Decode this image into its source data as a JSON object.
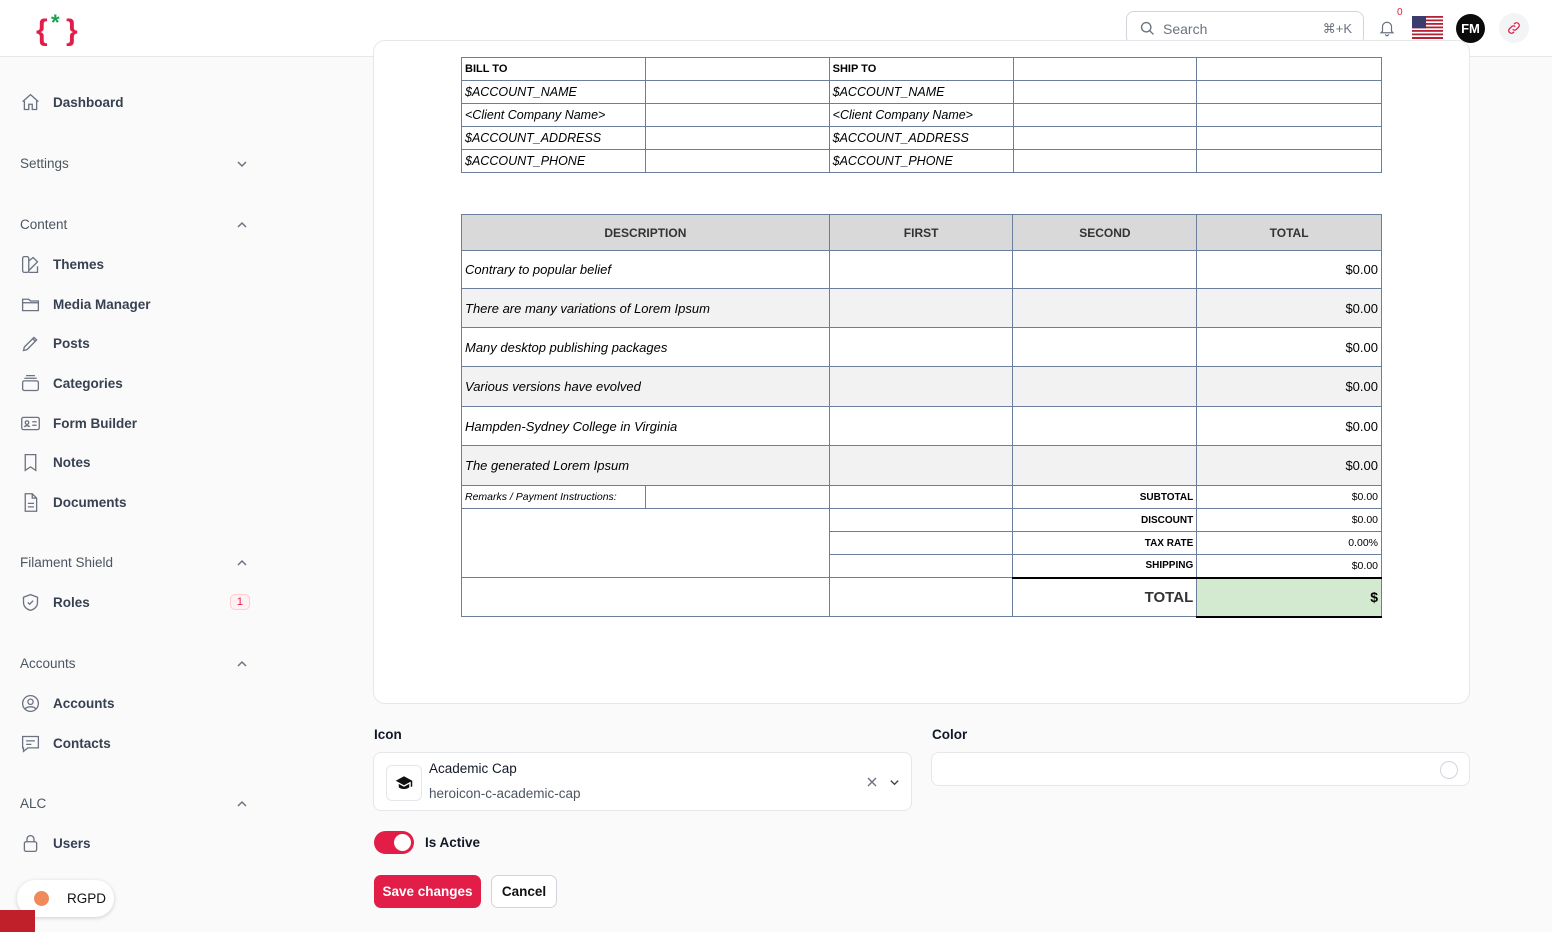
{
  "header": {
    "search_placeholder": "Search",
    "search_shortcut": "⌘+K",
    "notification_count": "0",
    "user_initials": "FM",
    "brand_color": "#e11d48"
  },
  "sidebar": {
    "dashboard": "Dashboard",
    "groups": {
      "settings": "Settings",
      "content": "Content",
      "shield": "Filament Shield",
      "accounts": "Accounts",
      "alc": "ALC"
    },
    "items": {
      "themes": "Themes",
      "media": "Media Manager",
      "posts": "Posts",
      "categories": "Categories",
      "form_builder": "Form Builder",
      "notes": "Notes",
      "documents": "Documents",
      "roles": "Roles",
      "roles_badge": "1",
      "accounts": "Accounts",
      "contacts": "Contacts",
      "users": "Users"
    },
    "rgpd": "RGPD"
  },
  "invoice": {
    "bill_to": "BILL TO",
    "ship_to": "SHIP TO",
    "bill": [
      "$ACCOUNT_NAME",
      "<Client Company Name>",
      "$ACCOUNT_ADDRESS",
      "$ACCOUNT_PHONE"
    ],
    "ship": [
      "$ACCOUNT_NAME",
      "<Client Company Name>",
      "$ACCOUNT_ADDRESS",
      "$ACCOUNT_PHONE"
    ],
    "columns": [
      "DESCRIPTION",
      "FIRST",
      "SECOND",
      "TOTAL"
    ],
    "rows": [
      {
        "desc": "Contrary to popular belief",
        "total": "$0.00"
      },
      {
        "desc": "There are many variations of Lorem Ipsum",
        "total": "$0.00"
      },
      {
        "desc": "Many desktop publishing packages",
        "total": "$0.00"
      },
      {
        "desc": "Various versions have evolved",
        "total": "$0.00"
      },
      {
        "desc": "Hampden-Sydney College in Virginia",
        "total": "$0.00"
      },
      {
        "desc": "The generated Lorem Ipsum",
        "total": "$0.00"
      }
    ],
    "remarks": "Remarks / Payment Instructions:",
    "subtotal_label": "SUBTOTAL",
    "subtotal": "$0.00",
    "discount_label": "DISCOUNT",
    "discount": "$0.00",
    "tax_label": "TAX RATE",
    "tax": "0.00%",
    "shipping_label": "SHIPPING",
    "shipping": "$0.00",
    "total_label": "TOTAL",
    "total": "$"
  },
  "form": {
    "icon_label": "Icon",
    "icon_name": "Academic Cap",
    "icon_id": "heroicon-c-academic-cap",
    "color_label": "Color",
    "active_label": "Is Active",
    "save": "Save changes",
    "cancel": "Cancel"
  }
}
